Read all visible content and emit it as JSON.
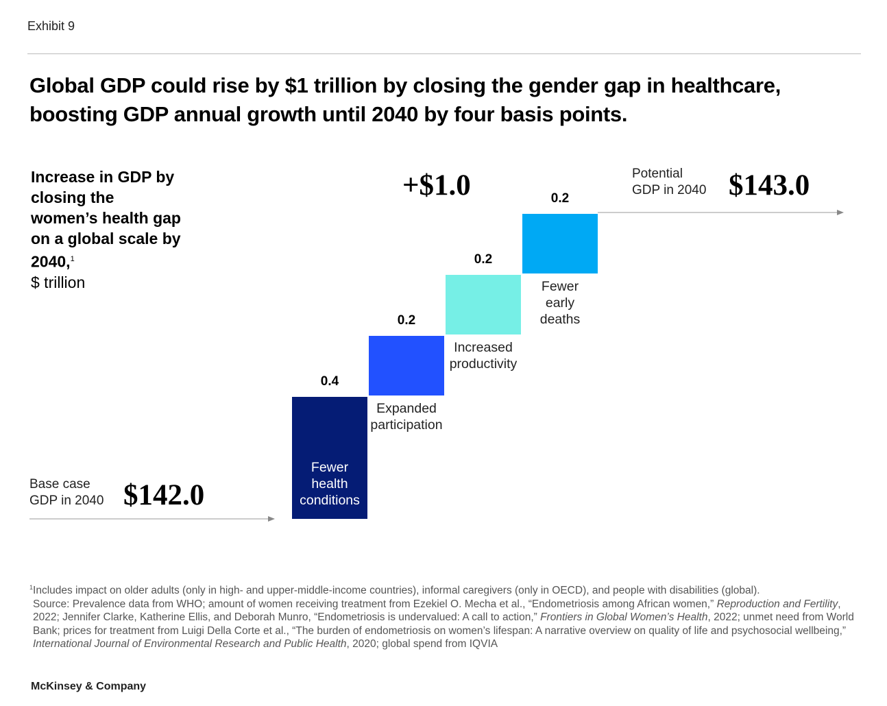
{
  "exhibit": "Exhibit 9",
  "title": "Global GDP could rise by $1 trillion by closing the gender gap in healthcare, boosting GDP annual growth until 2040 by four basis points.",
  "subtitle_bold": "Increase in GDP by closing the women’s health gap on a global scale by 2040,",
  "subtitle_sup": "1",
  "subtitle_unit": "$ trillion",
  "chart_data": {
    "type": "waterfall",
    "title": "Increase in GDP by closing the women’s health gap on a global scale by 2040, $ trillion",
    "start": {
      "label_line1": "Base case",
      "label_line2": "GDP in 2040",
      "value": 142.0,
      "value_text": "$142.0"
    },
    "end": {
      "label_line1": "Potential",
      "label_line2": "GDP in 2040",
      "value": 143.0,
      "value_text": "$143.0"
    },
    "total_increase_text": "+$1.0",
    "total_increase": 1.0,
    "categories": [
      "Fewer health conditions",
      "Expanded participation",
      "Increased productivity",
      "Fewer early deaths"
    ],
    "category_lines": [
      [
        "Fewer",
        "health",
        "conditions"
      ],
      [
        "Expanded",
        "participation"
      ],
      [
        "Increased",
        "productivity"
      ],
      [
        "Fewer",
        "early",
        "deaths"
      ]
    ],
    "values": [
      0.4,
      0.2,
      0.2,
      0.2
    ],
    "value_labels": [
      "0.4",
      "0.2",
      "0.2",
      "0.2"
    ],
    "colors": [
      "#051c75",
      "#2251ff",
      "#76efe6",
      "#00a9f4"
    ]
  },
  "footnote_1": "Includes impact on older adults (only in high- and upper-middle-income countries), informal caregivers (only in OECD), and people with disabilities (global).",
  "footnote_sup": "1",
  "source": {
    "s1": "Source: Prevalence data from WHO; amount of women receiving treatment from Ezekiel O. Mecha et al., “Endometriosis among African women,” ",
    "i1": "Reproduction and Fertility",
    "s2": ", 2022; Jennifer Clarke, Katherine Ellis, and Deborah Munro, “Endometriosis is undervalued: A call to action,” ",
    "i2": "Frontiers in Global Women’s Health",
    "s3": ", 2022; unmet need from World Bank; prices for treatment from Luigi Della Corte et al., “The burden of endometriosis on women’s lifespan: A narrative overview on quality of life and psychosocial wellbeing,” ",
    "i3": "International Journal of Environmental Research and Public Health",
    "s4": ", 2020; global spend from IQVIA"
  },
  "brand": "McKinsey & Company"
}
